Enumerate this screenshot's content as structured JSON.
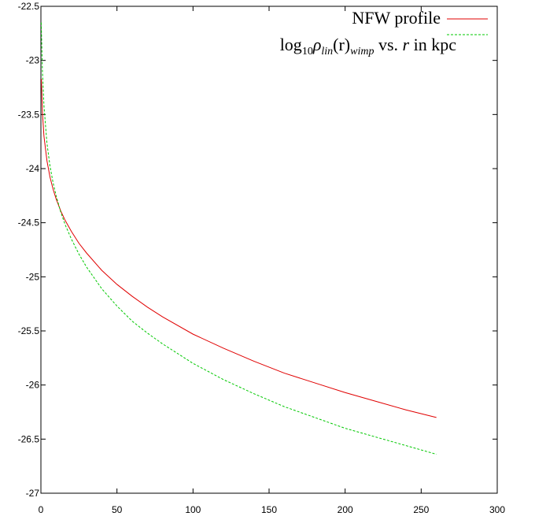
{
  "chart_data": {
    "type": "line",
    "title": "",
    "xlabel": "",
    "ylabel": "",
    "xlim": [
      0,
      300
    ],
    "ylim": [
      -27,
      -22.5
    ],
    "xticks": [
      0,
      50,
      100,
      150,
      200,
      250,
      300
    ],
    "yticks": [
      -22.5,
      -23,
      -23.5,
      -24,
      -24.5,
      -25,
      -25.5,
      -26,
      -26.5,
      -27
    ],
    "xtick_labels": [
      "0",
      "50",
      "100",
      "150",
      "200",
      "250",
      "300"
    ],
    "ytick_labels": [
      "-22.5",
      "-23",
      "-23.5",
      "-24",
      "-24.5",
      "-25",
      "-25.5",
      "-26",
      "-26.5",
      "-27"
    ],
    "grid": false,
    "legend_position": "top-right",
    "series": [
      {
        "name": "NFW profile",
        "color": "#e00000",
        "dash": "solid",
        "x": [
          0.3,
          1,
          2,
          4,
          6,
          8,
          10,
          13,
          16,
          20,
          25,
          30,
          40,
          50,
          60,
          70,
          80,
          100,
          120,
          140,
          160,
          180,
          200,
          220,
          240,
          260
        ],
        "y": [
          -23.17,
          -23.48,
          -23.7,
          -23.93,
          -24.08,
          -24.19,
          -24.28,
          -24.39,
          -24.48,
          -24.58,
          -24.69,
          -24.78,
          -24.94,
          -25.07,
          -25.18,
          -25.28,
          -25.37,
          -25.53,
          -25.66,
          -25.78,
          -25.89,
          -25.98,
          -26.07,
          -26.15,
          -26.23,
          -26.3
        ]
      },
      {
        "name": "log10 ρlin(r)wimp vs. r in kpc",
        "color": "#00c800",
        "dash": "dashed",
        "x": [
          0.2,
          1,
          2,
          4,
          6,
          8,
          10,
          13,
          16,
          20,
          25,
          30,
          40,
          50,
          60,
          70,
          80,
          100,
          120,
          140,
          160,
          180,
          200,
          220,
          240,
          260
        ],
        "y": [
          -22.65,
          -23.1,
          -23.42,
          -23.77,
          -23.98,
          -24.13,
          -24.25,
          -24.4,
          -24.52,
          -24.65,
          -24.79,
          -24.91,
          -25.11,
          -25.27,
          -25.41,
          -25.52,
          -25.62,
          -25.8,
          -25.95,
          -26.08,
          -26.2,
          -26.3,
          -26.4,
          -26.48,
          -26.56,
          -26.64
        ]
      }
    ]
  },
  "legend": {
    "entry1": "NFW profile",
    "entry2_pre": "log",
    "entry2_sub10": "10",
    "entry2_rho": "ρ",
    "entry2_lin": "lin",
    "entry2_r": "(r)",
    "entry2_wimp": "wimp",
    "entry2_vs": " vs. ",
    "entry2_rvar": "r",
    "entry2_post": " in kpc"
  }
}
